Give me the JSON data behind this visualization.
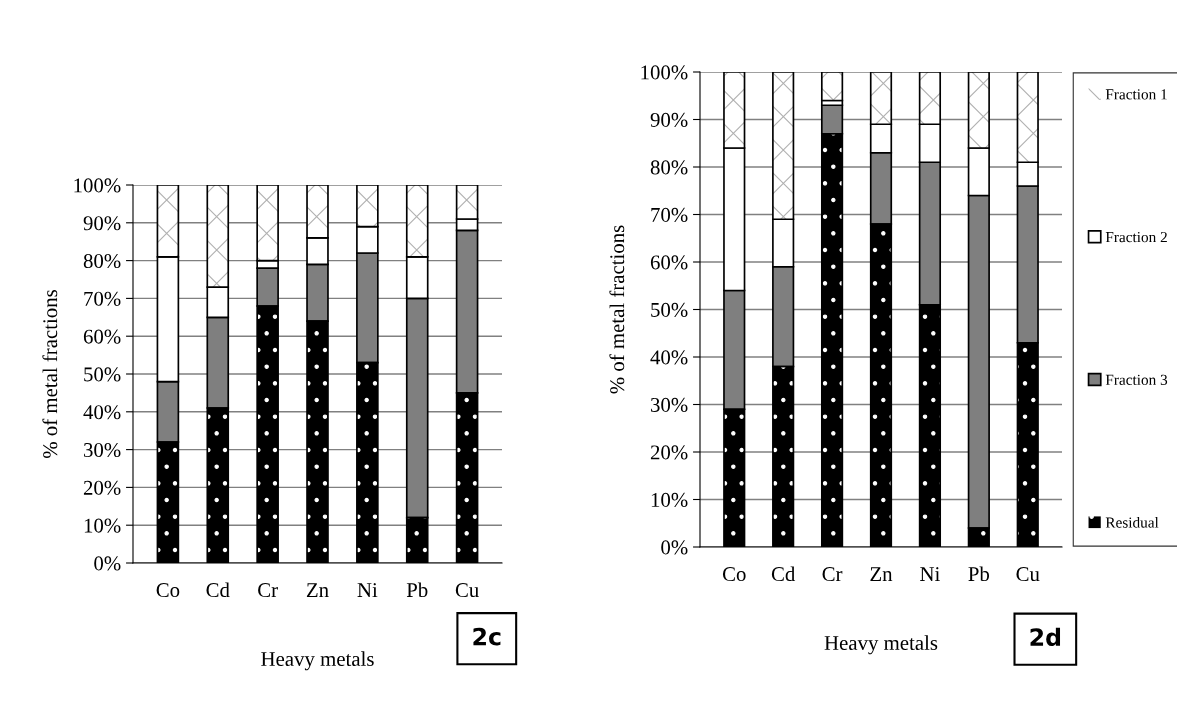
{
  "chart_data": [
    {
      "type": "bar",
      "stacked": true,
      "xlabel": "Heavy metals",
      "ylabel": "% of metal fractions",
      "categories": [
        "Co",
        "Cd",
        "Cr",
        "Zn",
        "Ni",
        "Pb",
        "Cu"
      ],
      "ylim": [
        0,
        100
      ],
      "yticks": [
        {
          "value": 0,
          "label": "0%"
        },
        {
          "value": 10,
          "label": "10%"
        },
        {
          "value": 20,
          "label": "20%"
        },
        {
          "value": 30,
          "label": "30%"
        },
        {
          "value": 40,
          "label": "40%"
        },
        {
          "value": 50,
          "label": "50%"
        },
        {
          "value": 60,
          "label": "60%"
        },
        {
          "value": 70,
          "label": "70%"
        },
        {
          "value": 80,
          "label": "80%"
        },
        {
          "value": 90,
          "label": "90%"
        },
        {
          "value": 100,
          "label": "100%"
        }
      ],
      "grid": "y",
      "legend": false,
      "annotations": [
        "2c"
      ],
      "series": [
        {
          "color": "#000000",
          "values": [
            32,
            41,
            68,
            64,
            53,
            12,
            45
          ]
        },
        {
          "color": "#7f7f7f",
          "values": [
            16,
            24,
            10,
            15,
            29,
            58,
            43
          ]
        },
        {
          "color": "#ffffff",
          "values": [
            33,
            8,
            2,
            7,
            7,
            11,
            3
          ]
        },
        {
          "color": "#ffffff",
          "values": [
            19,
            27,
            20,
            14,
            11,
            19,
            9
          ]
        }
      ]
    },
    {
      "type": "bar",
      "stacked": true,
      "xlabel": "Heavy metals",
      "ylabel": "% of metal fractions",
      "categories": [
        "Co",
        "Cd",
        "Cr",
        "Zn",
        "Ni",
        "Pb",
        "Cu"
      ],
      "ylim": [
        0,
        100
      ],
      "yticks": [
        {
          "value": 0,
          "label": "0%"
        },
        {
          "value": 10,
          "label": "10%"
        },
        {
          "value": 20,
          "label": "20%"
        },
        {
          "value": 30,
          "label": "30%"
        },
        {
          "value": 40,
          "label": "40%"
        },
        {
          "value": 50,
          "label": "50%"
        },
        {
          "value": 60,
          "label": "60%"
        },
        {
          "value": 70,
          "label": "70%"
        },
        {
          "value": 80,
          "label": "80%"
        },
        {
          "value": 90,
          "label": "90%"
        },
        {
          "value": 100,
          "label": "100%"
        }
      ],
      "grid": "y",
      "legend": "right",
      "annotations": [
        "2d"
      ],
      "series": [
        {
          "name": "Residual",
          "color": "#000000",
          "values": [
            29,
            38,
            87,
            68,
            51,
            4,
            43
          ]
        },
        {
          "name": "Fraction 3",
          "color": "#7f7f7f",
          "values": [
            25,
            21,
            6,
            15,
            30,
            70,
            33
          ]
        },
        {
          "name": "Fraction 2",
          "color": "#ffffff",
          "values": [
            30,
            10,
            1,
            6,
            8,
            10,
            5
          ]
        },
        {
          "name": "Fraction 1",
          "color": "#ffffff",
          "values": [
            16,
            31,
            6,
            11,
            11,
            16,
            19
          ]
        }
      ]
    }
  ]
}
